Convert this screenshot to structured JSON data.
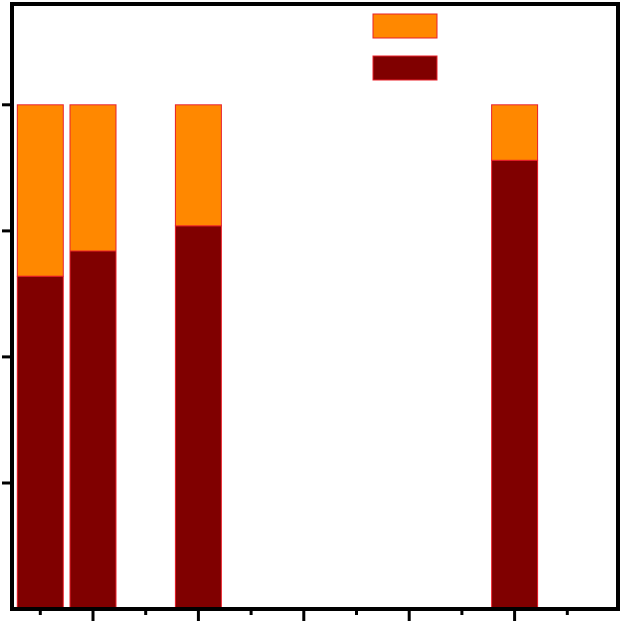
{
  "chart_data": {
    "type": "bar",
    "stacked": true,
    "x": [
      0,
      1,
      3,
      9
    ],
    "xlim": [
      -0.5,
      11
    ],
    "ylim": [
      0,
      1.2
    ],
    "series": [
      {
        "values": [
          0.66,
          0.71,
          0.76,
          0.89
        ],
        "color": "#800000"
      },
      {
        "values": [
          0.34,
          0.29,
          0.24,
          0.11
        ],
        "color": "#ff8800"
      }
    ],
    "legend_position": "top-right",
    "grid": false
  }
}
